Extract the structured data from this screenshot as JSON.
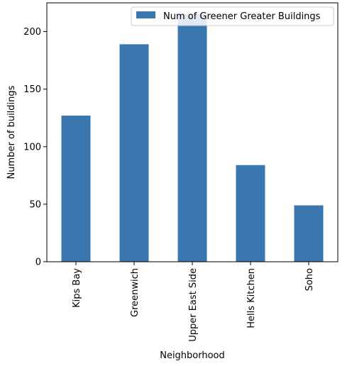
{
  "chart_data": {
    "type": "bar",
    "categories": [
      "Kips Bay",
      "Greenwich",
      "Upper East Side",
      "Hells Kitchen",
      "Soho"
    ],
    "series": [
      {
        "name": "Num of Greener Greater Buildings",
        "values": [
          127,
          189,
          215,
          84,
          49
        ],
        "color": "#3a76af"
      }
    ],
    "xlabel": "Neighborhood",
    "ylabel": "Number of buildings",
    "ylim": [
      0,
      225
    ],
    "yticks": [
      0,
      50,
      100,
      150,
      200
    ],
    "grid": false,
    "legend": "upper right"
  }
}
